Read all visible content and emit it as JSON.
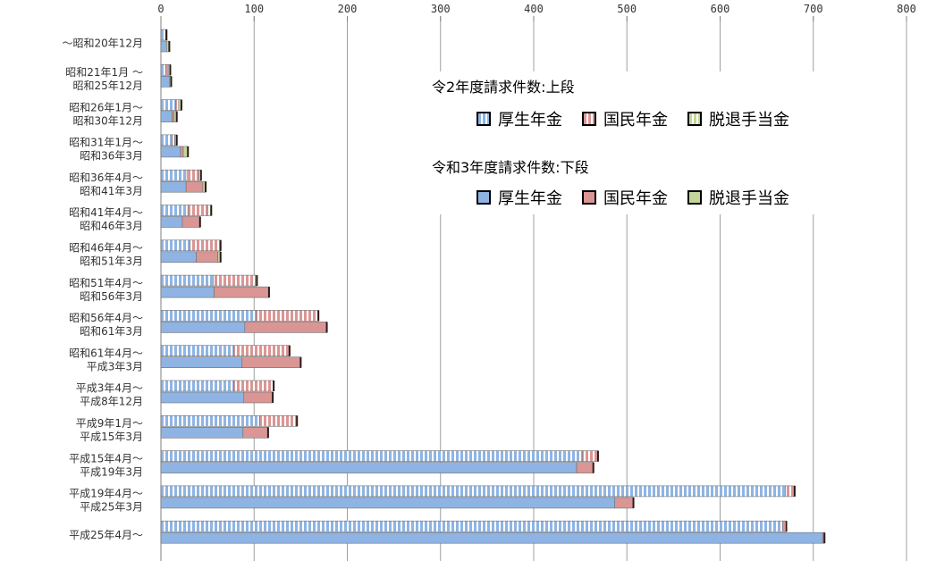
{
  "chart_data": {
    "type": "bar",
    "orientation": "horizontal",
    "stacked": true,
    "grid": true,
    "xlim": [
      0,
      800
    ],
    "x_ticks": [
      "0",
      "100",
      "200",
      "300",
      "400",
      "500",
      "600",
      "700",
      "800"
    ],
    "categories": [
      "～昭和20年12月",
      "昭和21年1月 ～\n昭和25年12月",
      "昭和26年1月～\n昭和30年12月",
      "昭和31年1月～\n昭和36年3月",
      "昭和36年4月～\n昭和41年3月",
      "昭和41年4月～\n昭和46年3月",
      "昭和46年4月～\n昭和51年3月",
      "昭和51年4月～\n昭和56年3月",
      "昭和56年4月～\n昭和61年3月",
      "昭和61年4月～\n平成3年3月",
      "平成3年4月～\n平成8年12月",
      "平成9年1月～\n平成15年3月",
      "平成15年4月～\n平成19年3月",
      "平成19年4月～\n平成25年3月",
      "平成25年4月～"
    ],
    "groups": [
      {
        "name": "令2年度請求件数:上段",
        "pattern": "striped",
        "series": [
          {
            "name": "厚生年金",
            "values": [
              5,
              5,
              16,
              12,
              28,
              29,
              31,
              56,
              102,
              78,
              78,
              106,
              452,
              670,
              667
            ]
          },
          {
            "name": "国民年金",
            "values": [
              0,
              3,
              3,
              3,
              13,
              21,
              33,
              45,
              67,
              60,
              43,
              40,
              17,
              10,
              4
            ]
          },
          {
            "name": "脱退手当金",
            "values": [
              1,
              2,
              3,
              2,
              2,
              4,
              0,
              2,
              0,
              0,
              0,
              0,
              0,
              0,
              0
            ]
          }
        ]
      },
      {
        "name": "令和3年度請求件数:下段",
        "pattern": "solid",
        "series": [
          {
            "name": "厚生年金",
            "values": [
              6,
              9,
              12,
              21,
              27,
              23,
              38,
              57,
              90,
              87,
              89,
              88,
              446,
              487,
              710
            ]
          },
          {
            "name": "国民年金",
            "values": [
              0,
              0,
              2,
              3,
              18,
              19,
              23,
              59,
              88,
              63,
              31,
              27,
              18,
              20,
              2
            ]
          },
          {
            "name": "脱退手当金",
            "values": [
              3,
              2,
              3,
              5,
              3,
              0,
              3,
              0,
              0,
              0,
              0,
              0,
              0,
              0,
              0
            ]
          }
        ]
      }
    ],
    "colors": {
      "厚生年金": "#8fb4e3",
      "国民年金": "#da9694",
      "脱退手当金": "#c3d69b"
    }
  },
  "legend": {
    "upper_title": "令2年度請求件数:上段",
    "lower_title": "令和3年度請求件数:下段",
    "items": [
      "厚生年金",
      "国民年金",
      "脱退手当金"
    ]
  }
}
